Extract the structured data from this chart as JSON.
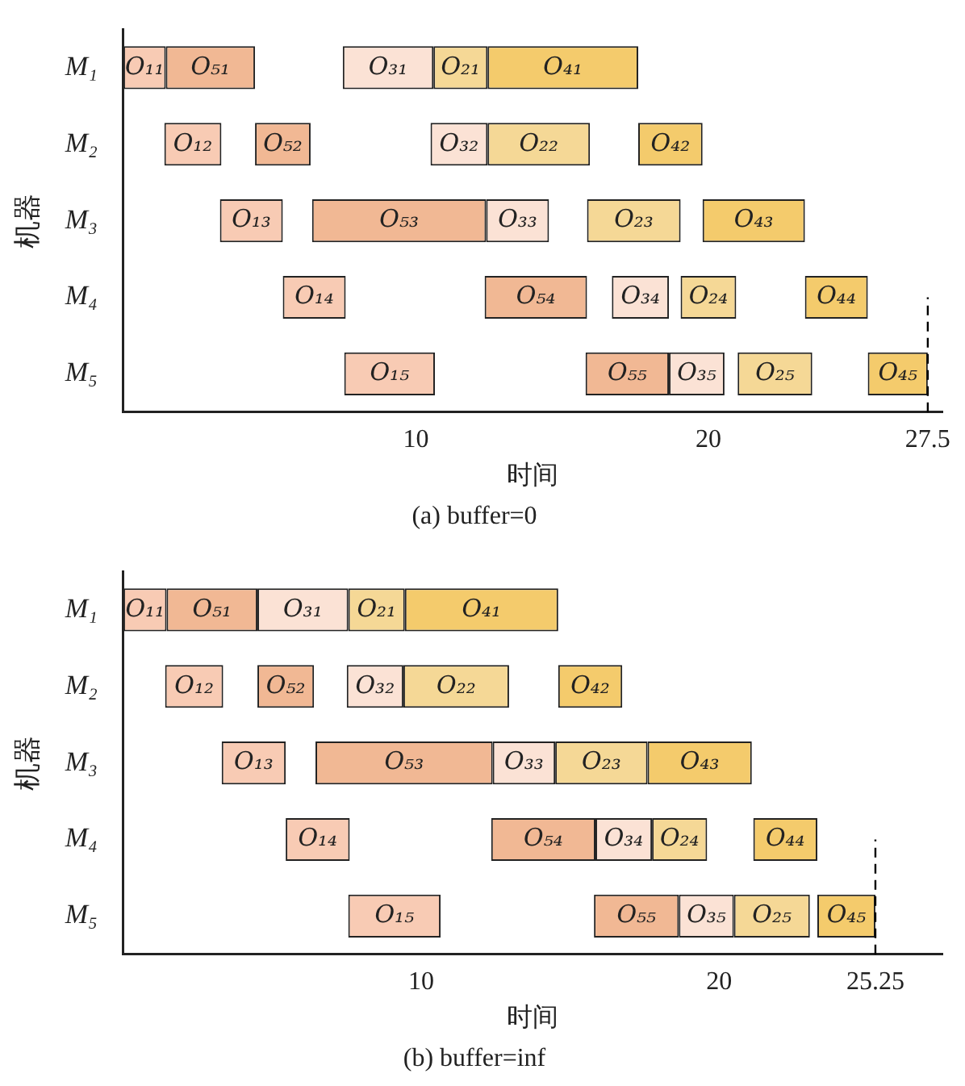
{
  "chart_data": [
    {
      "type": "bar",
      "orientation": "horizontal",
      "title": "(a) buffer=0",
      "xlabel": "时间",
      "ylabel": "机器",
      "categories": [
        "M₁",
        "M₂",
        "M₃",
        "M₄",
        "M₅"
      ],
      "xlim": [
        0,
        28
      ],
      "xticks": [
        10,
        20,
        27.5
      ],
      "grid": false,
      "legend": false,
      "ref_lines": [
        {
          "axis": "x",
          "value": 27.5,
          "line_style": "dashed",
          "color": "#000000"
        }
      ],
      "series": [
        {
          "name": "O₁₁",
          "color": "#f8cbb4",
          "values": [
            1.45,
            null,
            null,
            null,
            null
          ],
          "base": [
            0,
            null,
            null,
            null,
            null
          ]
        },
        {
          "name": "O₅₁",
          "color": "#f1b894",
          "values": [
            3.05,
            null,
            null,
            null,
            null
          ],
          "base": [
            1.45,
            null,
            null,
            null,
            null
          ]
        },
        {
          "name": "O₃₁",
          "color": "#fbe2d5",
          "values": [
            3.1,
            null,
            null,
            null,
            null
          ],
          "base": [
            7.5,
            null,
            null,
            null,
            null
          ]
        },
        {
          "name": "O₂₁",
          "color": "#f5d896",
          "values": [
            1.85,
            null,
            null,
            null,
            null
          ],
          "base": [
            10.6,
            null,
            null,
            null,
            null
          ]
        },
        {
          "name": "O₄₁",
          "color": "#f4cb6c",
          "values": [
            5.15,
            null,
            null,
            null,
            null
          ],
          "base": [
            12.45,
            null,
            null,
            null,
            null
          ]
        },
        {
          "name": "O₁₂",
          "color": "#f8cbb4",
          "values": [
            null,
            1.95,
            null,
            null,
            null
          ],
          "base": [
            null,
            1.4,
            null,
            null,
            null
          ]
        },
        {
          "name": "O₅₂",
          "color": "#f1b894",
          "values": [
            null,
            1.9,
            null,
            null,
            null
          ],
          "base": [
            null,
            4.5,
            null,
            null,
            null
          ]
        },
        {
          "name": "O₃₂",
          "color": "#fbe2d5",
          "values": [
            null,
            1.95,
            null,
            null,
            null
          ],
          "base": [
            null,
            10.5,
            null,
            null,
            null
          ]
        },
        {
          "name": "O₂₂",
          "color": "#f5d896",
          "values": [
            null,
            3.5,
            null,
            null,
            null
          ],
          "base": [
            null,
            12.45,
            null,
            null,
            null
          ]
        },
        {
          "name": "O₄₂",
          "color": "#f4cb6c",
          "values": [
            null,
            2.2,
            null,
            null,
            null
          ],
          "base": [
            null,
            17.6,
            null,
            null,
            null
          ]
        },
        {
          "name": "O₁₃",
          "color": "#f8cbb4",
          "values": [
            null,
            null,
            2.15,
            null,
            null
          ],
          "base": [
            null,
            null,
            3.3,
            null,
            null
          ]
        },
        {
          "name": "O₅₃",
          "color": "#f1b894",
          "values": [
            null,
            null,
            5.95,
            null,
            null
          ],
          "base": [
            null,
            null,
            6.45,
            null,
            null
          ]
        },
        {
          "name": "O₃₃",
          "color": "#fbe2d5",
          "values": [
            null,
            null,
            2.15,
            null,
            null
          ],
          "base": [
            null,
            null,
            12.4,
            null,
            null
          ]
        },
        {
          "name": "O₂₃",
          "color": "#f5d896",
          "values": [
            null,
            null,
            3.2,
            null,
            null
          ],
          "base": [
            null,
            null,
            15.85,
            null,
            null
          ]
        },
        {
          "name": "O₄₃",
          "color": "#f4cb6c",
          "values": [
            null,
            null,
            3.5,
            null,
            null
          ],
          "base": [
            null,
            null,
            19.8,
            null,
            null
          ]
        },
        {
          "name": "O₁₄",
          "color": "#f8cbb4",
          "values": [
            null,
            null,
            null,
            2.15,
            null
          ],
          "base": [
            null,
            null,
            null,
            5.45,
            null
          ]
        },
        {
          "name": "O₅₄",
          "color": "#f1b894",
          "values": [
            null,
            null,
            null,
            3.5,
            null
          ],
          "base": [
            null,
            null,
            null,
            12.35,
            null
          ]
        },
        {
          "name": "O₃₄",
          "color": "#fbe2d5",
          "values": [
            null,
            null,
            null,
            1.95,
            null
          ],
          "base": [
            null,
            null,
            null,
            16.7,
            null
          ]
        },
        {
          "name": "O₂₄",
          "color": "#f5d896",
          "values": [
            null,
            null,
            null,
            1.9,
            null
          ],
          "base": [
            null,
            null,
            null,
            19.05,
            null
          ]
        },
        {
          "name": "O₄₄",
          "color": "#f4cb6c",
          "values": [
            null,
            null,
            null,
            2.15,
            null
          ],
          "base": [
            null,
            null,
            null,
            23.3,
            null
          ]
        },
        {
          "name": "O₁₅",
          "color": "#f8cbb4",
          "values": [
            null,
            null,
            null,
            null,
            3.1
          ],
          "base": [
            null,
            null,
            null,
            null,
            7.55
          ]
        },
        {
          "name": "O₅₅",
          "color": "#f1b894",
          "values": [
            null,
            null,
            null,
            null,
            2.85
          ],
          "base": [
            null,
            null,
            null,
            null,
            15.8
          ]
        },
        {
          "name": "O₃₅",
          "color": "#fbe2d5",
          "values": [
            null,
            null,
            null,
            null,
            1.9
          ],
          "base": [
            null,
            null,
            null,
            null,
            18.65
          ]
        },
        {
          "name": "O₂₅",
          "color": "#f5d896",
          "values": [
            null,
            null,
            null,
            null,
            2.55
          ],
          "base": [
            null,
            null,
            null,
            null,
            21
          ]
        },
        {
          "name": "O₄₅",
          "color": "#f4cb6c",
          "values": [
            null,
            null,
            null,
            null,
            2.05
          ],
          "base": [
            null,
            null,
            null,
            null,
            25.45
          ]
        }
      ]
    },
    {
      "type": "bar",
      "orientation": "horizontal",
      "title": "(b) buffer=inf",
      "xlabel": "时间",
      "ylabel": "机器",
      "categories": [
        "M₁",
        "M₂",
        "M₃",
        "M₄",
        "M₅"
      ],
      "xlim": [
        0,
        27.5
      ],
      "xticks": [
        10,
        20,
        25.25
      ],
      "grid": false,
      "legend": false,
      "ref_lines": [
        {
          "axis": "x",
          "value": 25.25,
          "line_style": "dashed",
          "color": "#000000"
        }
      ],
      "series": [
        {
          "name": "O₁₁",
          "color": "#f8cbb4",
          "values": [
            1.45,
            null,
            null,
            null,
            null
          ],
          "base": [
            0,
            null,
            null,
            null,
            null
          ]
        },
        {
          "name": "O₅₁",
          "color": "#f1b894",
          "values": [
            3.05,
            null,
            null,
            null,
            null
          ],
          "base": [
            1.45,
            null,
            null,
            null,
            null
          ]
        },
        {
          "name": "O₃₁",
          "color": "#fbe2d5",
          "values": [
            3.05,
            null,
            null,
            null,
            null
          ],
          "base": [
            4.5,
            null,
            null,
            null,
            null
          ]
        },
        {
          "name": "O₂₁",
          "color": "#f5d896",
          "values": [
            1.9,
            null,
            null,
            null,
            null
          ],
          "base": [
            7.55,
            null,
            null,
            null,
            null
          ]
        },
        {
          "name": "O₄₁",
          "color": "#f4cb6c",
          "values": [
            5.15,
            null,
            null,
            null,
            null
          ],
          "base": [
            9.45,
            null,
            null,
            null,
            null
          ]
        },
        {
          "name": "O₁₂",
          "color": "#f8cbb4",
          "values": [
            null,
            1.95,
            null,
            null,
            null
          ],
          "base": [
            null,
            1.4,
            null,
            null,
            null
          ]
        },
        {
          "name": "O₅₂",
          "color": "#f1b894",
          "values": [
            null,
            1.9,
            null,
            null,
            null
          ],
          "base": [
            null,
            4.5,
            null,
            null,
            null
          ]
        },
        {
          "name": "O₃₂",
          "color": "#fbe2d5",
          "values": [
            null,
            1.9,
            null,
            null,
            null
          ],
          "base": [
            null,
            7.5,
            null,
            null,
            null
          ]
        },
        {
          "name": "O₂₂",
          "color": "#f5d896",
          "values": [
            null,
            3.55,
            null,
            null,
            null
          ],
          "base": [
            null,
            9.4,
            null,
            null,
            null
          ]
        },
        {
          "name": "O₄₂",
          "color": "#f4cb6c",
          "values": [
            null,
            2.15,
            null,
            null,
            null
          ],
          "base": [
            null,
            14.6,
            null,
            null,
            null
          ]
        },
        {
          "name": "O₁₃",
          "color": "#f8cbb4",
          "values": [
            null,
            null,
            2.15,
            null,
            null
          ],
          "base": [
            null,
            null,
            3.3,
            null,
            null
          ]
        },
        {
          "name": "O₅₃",
          "color": "#f1b894",
          "values": [
            null,
            null,
            5.95,
            null,
            null
          ],
          "base": [
            null,
            null,
            6.45,
            null,
            null
          ]
        },
        {
          "name": "O₃₃",
          "color": "#fbe2d5",
          "values": [
            null,
            null,
            2.1,
            null,
            null
          ],
          "base": [
            null,
            null,
            12.4,
            null,
            null
          ]
        },
        {
          "name": "O₂₃",
          "color": "#f5d896",
          "values": [
            null,
            null,
            3.1,
            null,
            null
          ],
          "base": [
            null,
            null,
            14.5,
            null,
            null
          ]
        },
        {
          "name": "O₄₃",
          "color": "#f4cb6c",
          "values": [
            null,
            null,
            3.5,
            null,
            null
          ],
          "base": [
            null,
            null,
            17.6,
            null,
            null
          ]
        },
        {
          "name": "O₁₄",
          "color": "#f8cbb4",
          "values": [
            null,
            null,
            null,
            2.15,
            null
          ],
          "base": [
            null,
            null,
            null,
            5.45,
            null
          ]
        },
        {
          "name": "O₅₄",
          "color": "#f1b894",
          "values": [
            null,
            null,
            null,
            3.5,
            null
          ],
          "base": [
            null,
            null,
            null,
            12.35,
            null
          ]
        },
        {
          "name": "O₃₄",
          "color": "#fbe2d5",
          "values": [
            null,
            null,
            null,
            1.9,
            null
          ],
          "base": [
            null,
            null,
            null,
            15.85,
            null
          ]
        },
        {
          "name": "O₂₄",
          "color": "#f5d896",
          "values": [
            null,
            null,
            null,
            1.85,
            null
          ],
          "base": [
            null,
            null,
            null,
            17.75,
            null
          ]
        },
        {
          "name": "O₄₄",
          "color": "#f4cb6c",
          "values": [
            null,
            null,
            null,
            2.15,
            null
          ],
          "base": [
            null,
            null,
            null,
            21.15,
            null
          ]
        },
        {
          "name": "O₁₅",
          "color": "#f8cbb4",
          "values": [
            null,
            null,
            null,
            null,
            3.1
          ],
          "base": [
            null,
            null,
            null,
            null,
            7.55
          ]
        },
        {
          "name": "O₅₅",
          "color": "#f1b894",
          "values": [
            null,
            null,
            null,
            null,
            2.85
          ],
          "base": [
            null,
            null,
            null,
            null,
            15.8
          ]
        },
        {
          "name": "O₃₅",
          "color": "#fbe2d5",
          "values": [
            null,
            null,
            null,
            null,
            1.85
          ],
          "base": [
            null,
            null,
            null,
            null,
            18.65
          ]
        },
        {
          "name": "O₂₅",
          "color": "#f5d896",
          "values": [
            null,
            null,
            null,
            null,
            2.55
          ],
          "base": [
            null,
            null,
            null,
            null,
            20.5
          ]
        },
        {
          "name": "O₄₅",
          "color": "#f4cb6c",
          "values": [
            null,
            null,
            null,
            null,
            1.95
          ],
          "base": [
            null,
            null,
            null,
            null,
            23.3
          ]
        }
      ]
    }
  ]
}
